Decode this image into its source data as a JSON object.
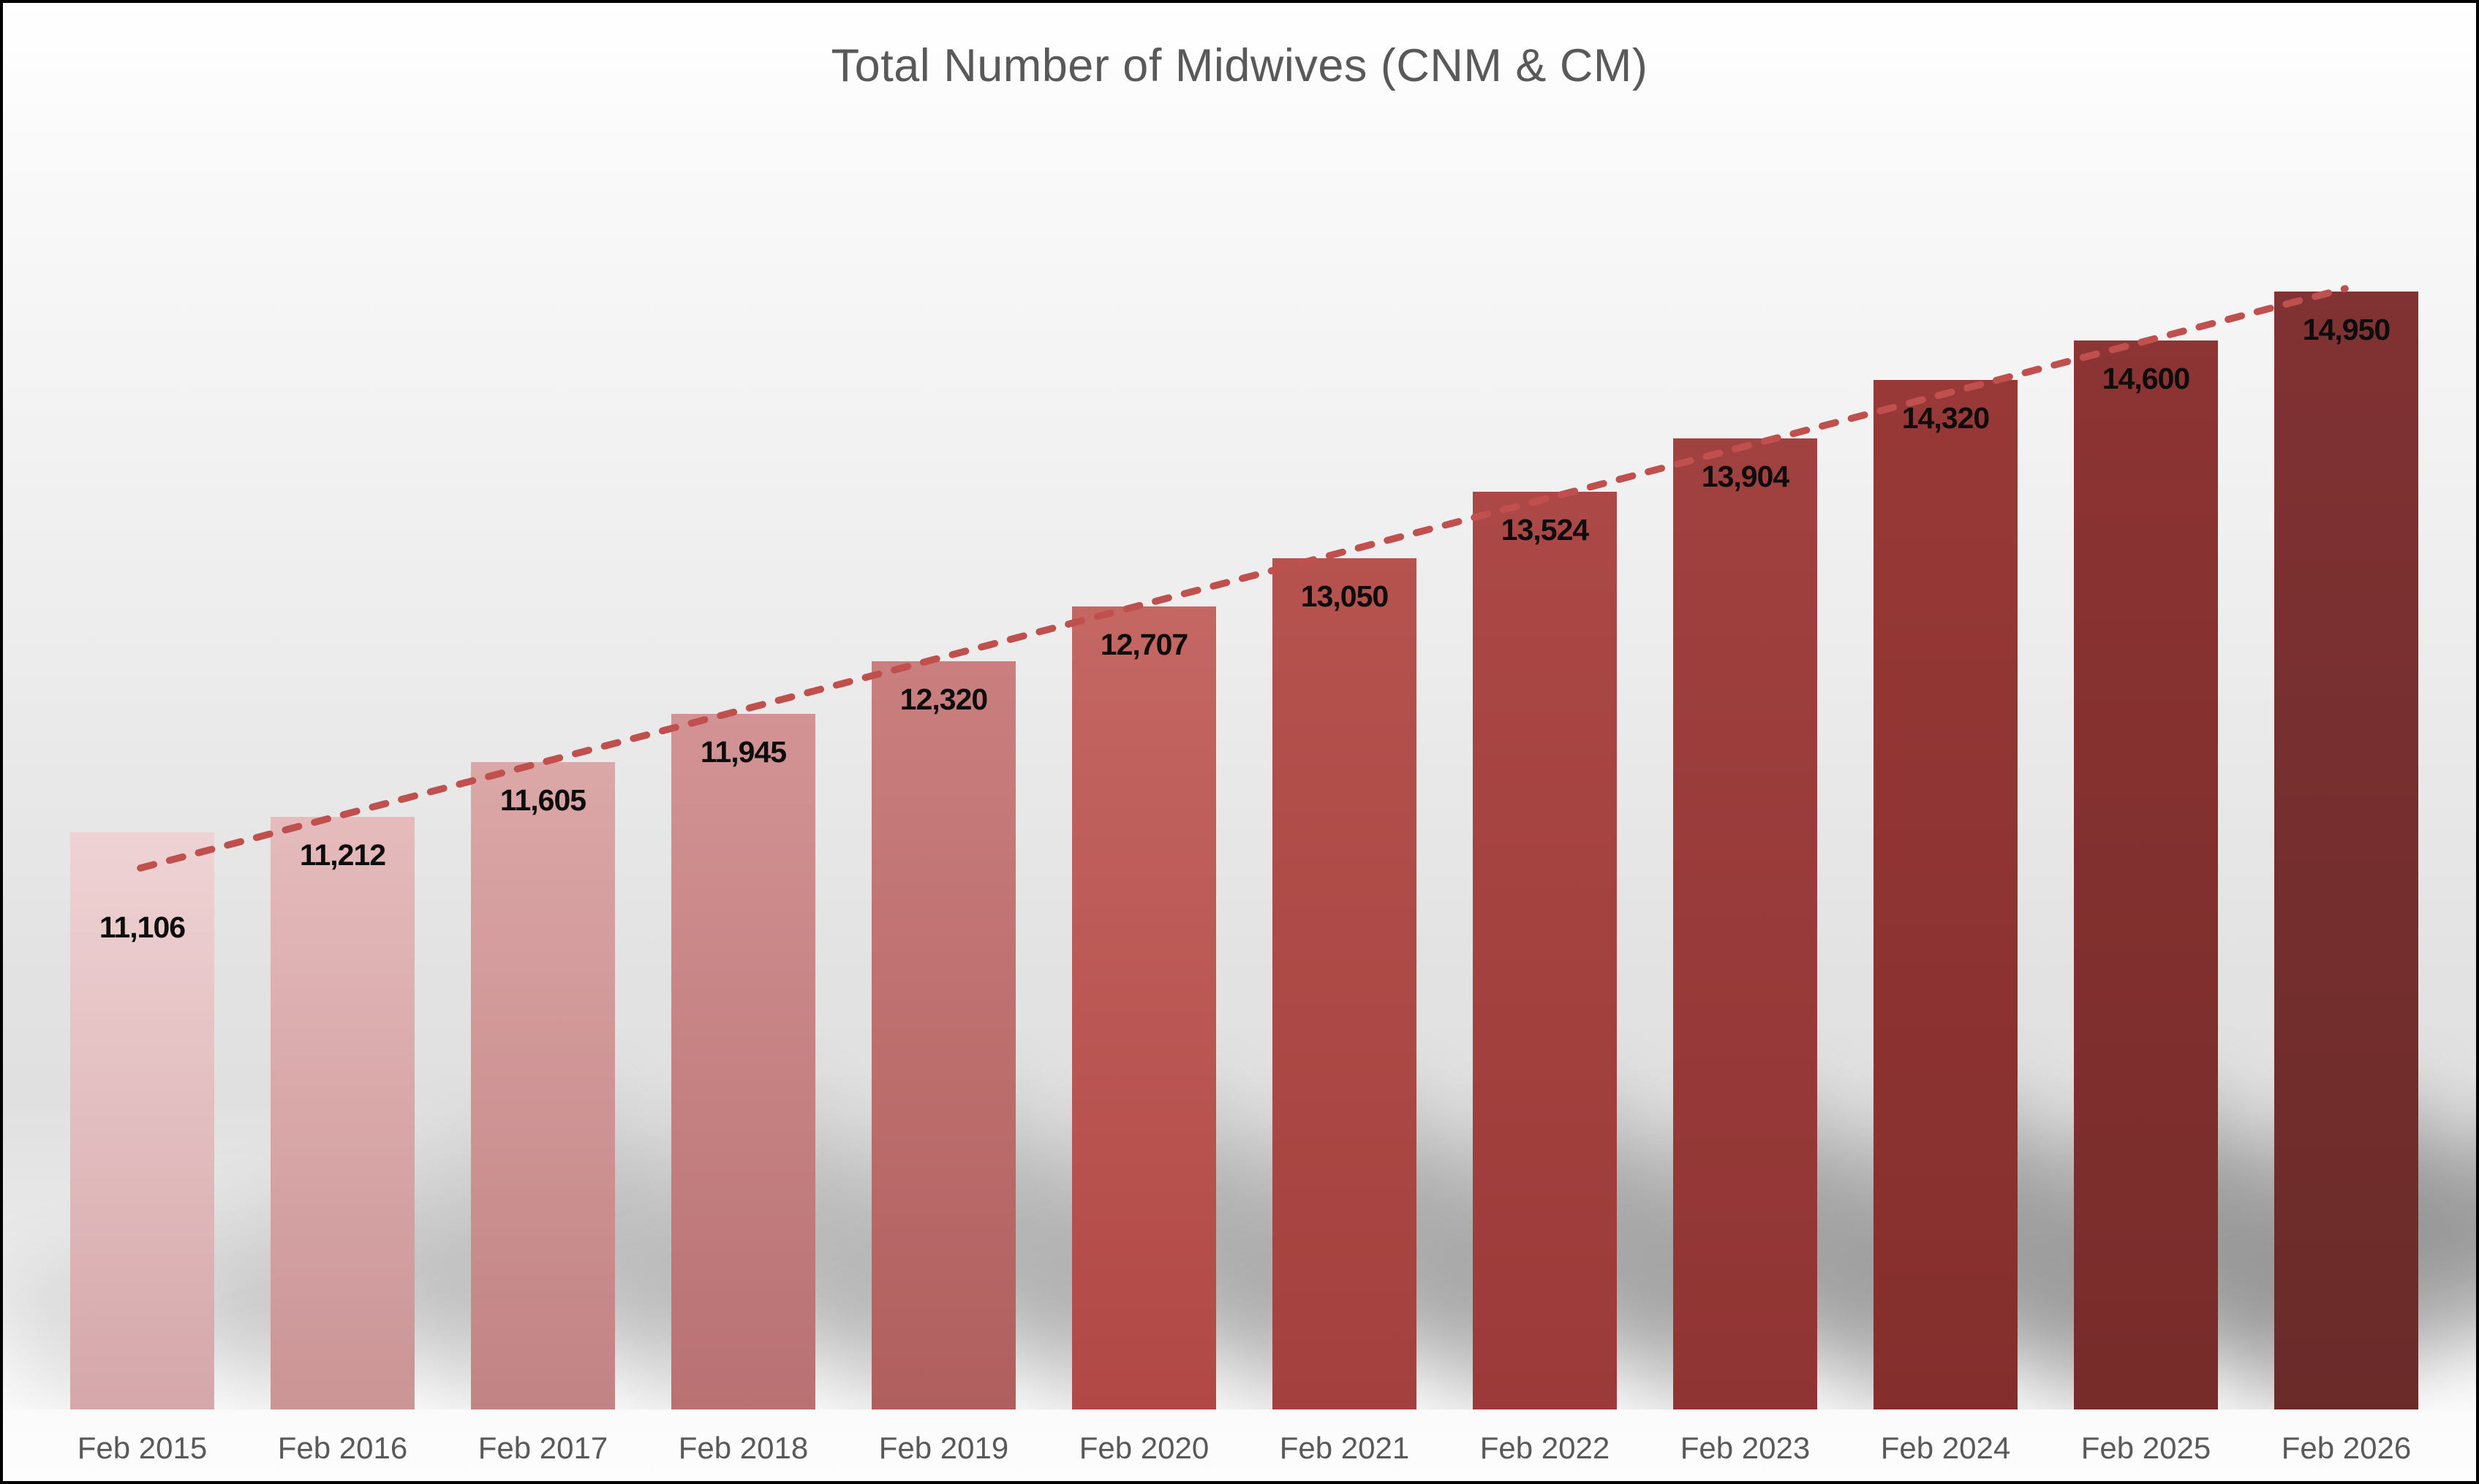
{
  "chart_data": {
    "type": "bar",
    "title": "Total Number of Midwives (CNM & CM)",
    "categories": [
      "Feb 2015",
      "Feb 2016",
      "Feb 2017",
      "Feb 2018",
      "Feb 2019",
      "Feb 2020",
      "Feb 2021",
      "Feb 2022",
      "Feb 2023",
      "Feb 2024",
      "Feb 2025",
      "Feb 2026"
    ],
    "values": [
      11106,
      11212,
      11605,
      11945,
      12320,
      12707,
      13050,
      13524,
      13904,
      14320,
      14600,
      14950
    ],
    "value_labels": [
      "11,106",
      "11,212",
      "11,605",
      "11,945",
      "12,320",
      "12,707",
      "13,050",
      "13,524",
      "13,904",
      "14,320",
      "14,600",
      "14,950"
    ],
    "xlabel": "",
    "ylabel": "",
    "ylim": [
      7000,
      15000
    ],
    "grid": false,
    "legend": false,
    "trendline": {
      "type": "linear",
      "style": "dashed",
      "color": "#c0504d"
    },
    "bar_colors_top": [
      "#efd3d4",
      "#e5bbbc",
      "#dca7a7",
      "#d39394",
      "#ca7f7f",
      "#c46763",
      "#b6534f",
      "#ac4946",
      "#a14140",
      "#983937",
      "#8d3434",
      "#813233"
    ],
    "bar_colors_bottom": [
      "#d5a7aa",
      "#cb9495",
      "#c28384",
      "#b97172",
      "#b05f5e",
      "#b14845",
      "#a4403d",
      "#9b3a38",
      "#903433",
      "#842f2d",
      "#772c2a",
      "#6a2b29"
    ]
  },
  "styles": {
    "title_color": "#595959",
    "axis_label_color": "#595959",
    "value_label_color": "#0d0d0d",
    "background_top": "#ffffff",
    "background_mid": "#e0e0e0",
    "shadow_color": "#6e6e6e",
    "border_color": "#000000"
  }
}
